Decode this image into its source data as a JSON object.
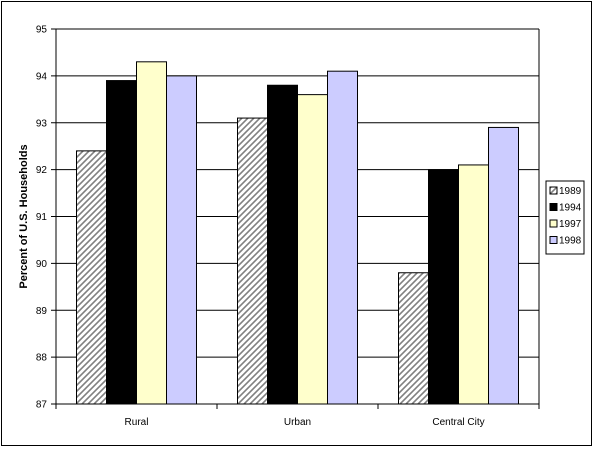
{
  "chart_data": {
    "type": "bar",
    "title": "",
    "xlabel": "",
    "ylabel": "Percent of U.S. Households",
    "categories": [
      "Rural",
      "Urban",
      "Central City"
    ],
    "ylim": [
      87,
      95
    ],
    "yticks": [
      87,
      88,
      89,
      90,
      91,
      92,
      93,
      94,
      95
    ],
    "grid": true,
    "legend_position": "right",
    "series": [
      {
        "name": "1989",
        "values": [
          92.4,
          93.1,
          89.8
        ],
        "color": "#ffffff",
        "pattern": "diagonal-hatch"
      },
      {
        "name": "1994",
        "values": [
          93.9,
          93.8,
          92.0
        ],
        "color": "#000000"
      },
      {
        "name": "1997",
        "values": [
          94.3,
          93.6,
          92.1
        ],
        "color": "#ffffcc"
      },
      {
        "name": "1998",
        "values": [
          94.0,
          94.1,
          92.9
        ],
        "color": "#ccccff"
      }
    ]
  }
}
